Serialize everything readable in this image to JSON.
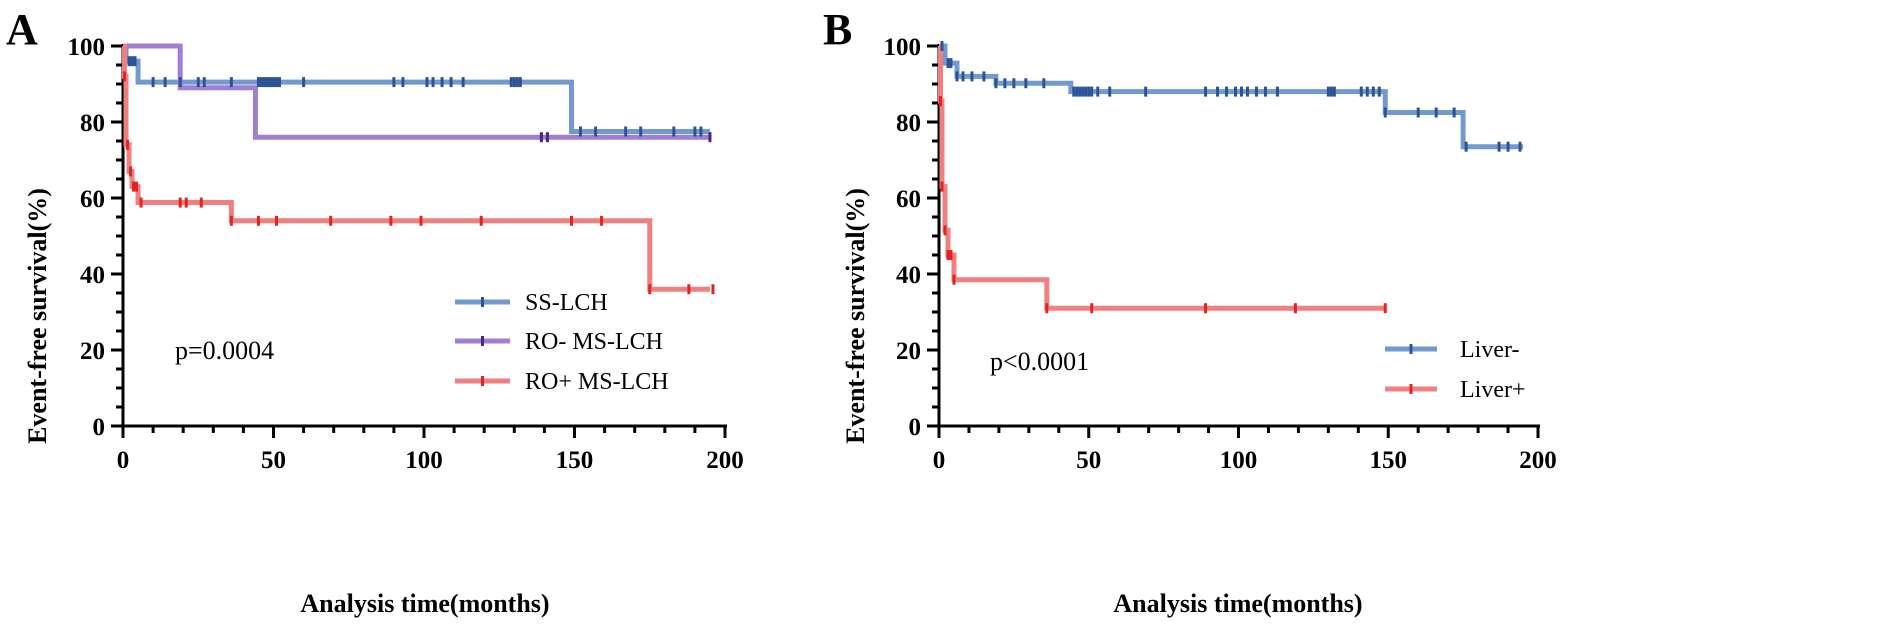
{
  "figure": {
    "panels": [
      "A",
      "B"
    ]
  },
  "chart_data": [
    {
      "panel_label": "A",
      "type": "line",
      "subtype": "kaplan-meier-step",
      "xlabel": "Analysis time(months)",
      "ylabel": "Event-free survival(%)",
      "xlim": [
        0,
        200
      ],
      "ylim": [
        0,
        100
      ],
      "xticks": [
        "0",
        "50",
        "100",
        "150",
        "200"
      ],
      "yticks": [
        "0",
        "20",
        "40",
        "60",
        "80",
        "100"
      ],
      "annotation": "p=0.0004",
      "legend_position": "bottom-right",
      "series": [
        {
          "name": "SS-LCH",
          "color": "#7399cf",
          "censor_color": "#2b5496",
          "steps": [
            [
              0,
              100
            ],
            [
              1,
              96
            ],
            [
              5,
              90.5
            ],
            [
              149,
              77.5
            ],
            [
              195,
              77.5
            ]
          ],
          "censored": [
            2,
            3,
            4,
            10,
            14,
            19,
            25,
            27,
            36,
            45,
            46,
            47,
            48,
            49,
            50,
            51,
            52,
            60,
            90,
            93,
            101,
            103,
            106,
            109,
            113,
            129,
            130,
            131,
            132,
            152,
            157,
            167,
            172,
            183,
            190,
            192
          ]
        },
        {
          "name": "RO- MS-LCH",
          "color": "#a07fd3",
          "censor_color": "#4a2488",
          "steps": [
            [
              0,
              100
            ],
            [
              19,
              89
            ],
            [
              44,
              76
            ],
            [
              195,
              76
            ]
          ],
          "censored": [
            139,
            141,
            195
          ]
        },
        {
          "name": "RO+ MS-LCH",
          "color": "#f07f7f",
          "censor_color": "#e32222",
          "steps": [
            [
              0,
              100
            ],
            [
              0.5,
              92
            ],
            [
              1,
              74
            ],
            [
              2,
              67
            ],
            [
              3,
              63
            ],
            [
              5,
              58.8
            ],
            [
              36,
              54
            ],
            [
              175,
              36
            ],
            [
              195,
              36
            ]
          ],
          "censored": [
            0.5,
            1.5,
            2.5,
            3.5,
            4.5,
            6,
            19,
            21,
            26,
            36,
            45,
            51,
            69,
            89,
            99,
            119,
            149,
            159,
            175,
            188,
            196
          ]
        }
      ]
    },
    {
      "panel_label": "B",
      "type": "line",
      "subtype": "kaplan-meier-step",
      "xlabel": "Analysis time(months)",
      "ylabel": "Event-free survival(%)",
      "xlim": [
        0,
        200
      ],
      "ylim": [
        0,
        100
      ],
      "xticks": [
        "0",
        "50",
        "100",
        "150",
        "200"
      ],
      "yticks": [
        "0",
        "20",
        "40",
        "60",
        "80",
        "100"
      ],
      "annotation": "p<0.0001",
      "legend_position": "bottom-right",
      "series": [
        {
          "name": "Liver-",
          "color": "#7399cf",
          "censor_color": "#2b5496",
          "steps": [
            [
              0,
              100
            ],
            [
              2,
              95.5
            ],
            [
              6,
              92
            ],
            [
              19,
              90.2
            ],
            [
              44,
              88
            ],
            [
              149,
              82.5
            ],
            [
              175,
              73.5
            ],
            [
              195,
              73.5
            ]
          ],
          "censored": [
            1,
            3,
            4,
            6,
            8,
            11,
            15,
            19,
            22,
            25,
            29,
            35,
            45,
            46,
            47,
            48,
            49,
            50,
            51,
            53,
            57,
            69,
            89,
            93,
            96,
            99,
            101,
            103,
            106,
            109,
            113,
            130,
            131,
            132,
            141,
            143,
            145,
            147,
            149,
            160,
            166,
            172,
            176,
            187,
            190,
            194
          ]
        },
        {
          "name": "Liver+",
          "color": "#f07f7f",
          "censor_color": "#e32222",
          "steps": [
            [
              0,
              100
            ],
            [
              0.5,
              85.5
            ],
            [
              1,
              63
            ],
            [
              2,
              51.5
            ],
            [
              3,
              45
            ],
            [
              5,
              38.5
            ],
            [
              36,
              31
            ],
            [
              149,
              31
            ]
          ],
          "censored": [
            0.5,
            1,
            2,
            3,
            4,
            5,
            36,
            51,
            89,
            119,
            149
          ]
        }
      ]
    }
  ]
}
